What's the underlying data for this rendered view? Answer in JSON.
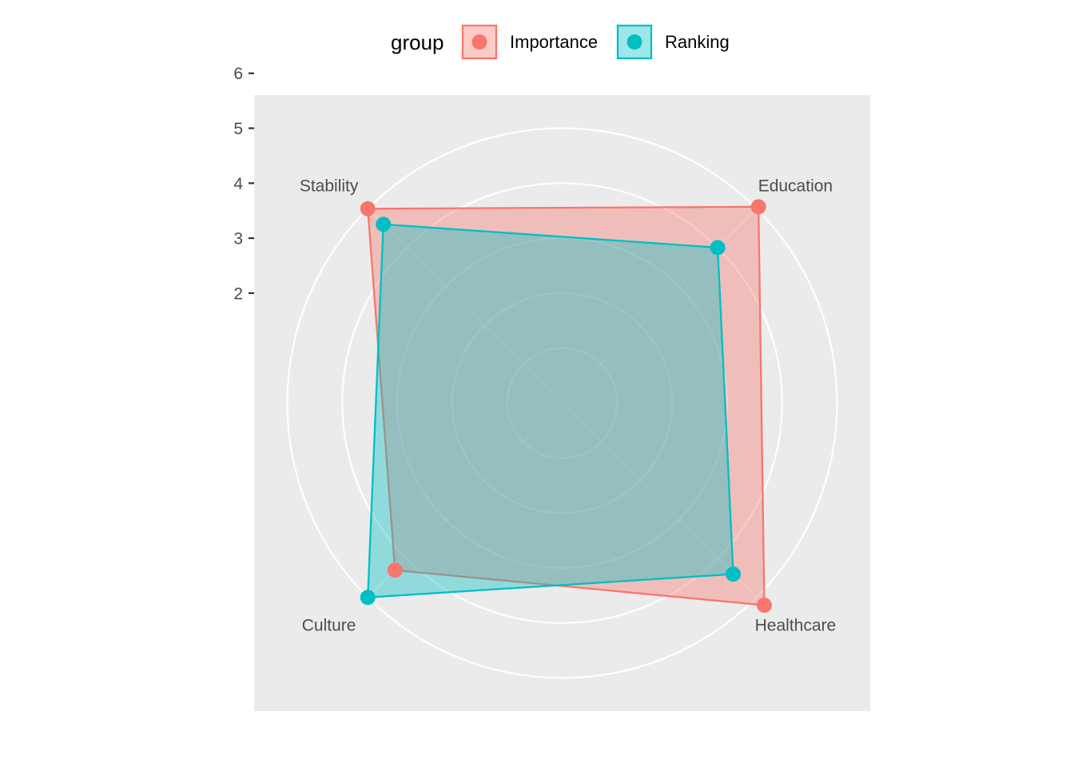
{
  "chart_data": {
    "type": "radar",
    "categories": [
      "Stability",
      "Education",
      "Healthcare",
      "Culture"
    ],
    "series": [
      {
        "name": "Importance",
        "values": [
          5.0,
          5.05,
          5.2,
          4.3
        ],
        "color": "#F8766D"
      },
      {
        "name": "Ranking",
        "values": [
          4.6,
          4.0,
          4.4,
          5.0
        ],
        "color": "#00BFC4"
      }
    ],
    "radial_ticks": [
      2,
      3,
      4,
      5,
      6
    ],
    "radial_range": [
      0,
      6.5
    ],
    "grid": true,
    "legend": {
      "title": "group",
      "position": "top",
      "entries": [
        "Importance",
        "Ranking"
      ]
    },
    "background_color": "#EBEBEB",
    "grid_color": "#FFFFFF"
  }
}
